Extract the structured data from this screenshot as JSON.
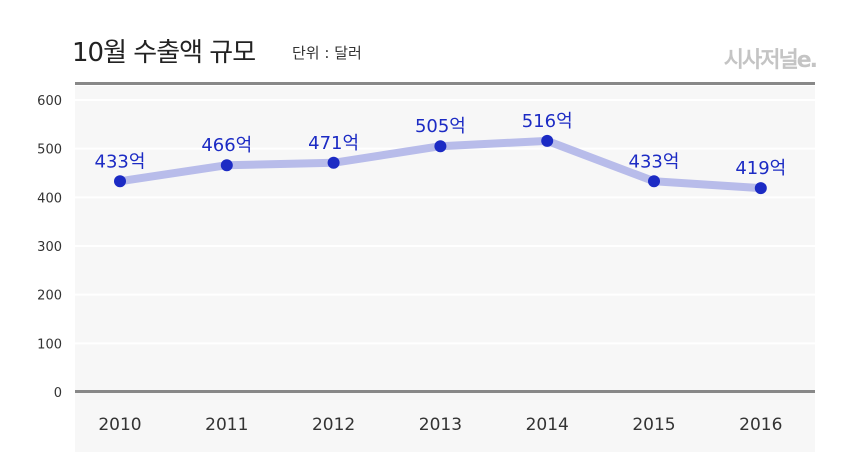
{
  "header": {
    "title": "10월 수출액 규모",
    "unit": "단위 : 달러",
    "logo": "시사저널e."
  },
  "chart_data": {
    "type": "line",
    "title": "10월 수출액 규모",
    "subtitle": "단위 : 달러",
    "categories": [
      "2010",
      "2011",
      "2012",
      "2013",
      "2014",
      "2015",
      "2016"
    ],
    "values": [
      433,
      466,
      471,
      505,
      516,
      433,
      419
    ],
    "data_labels": [
      "433억",
      "466억",
      "471억",
      "505억",
      "516억",
      "433억",
      "419억"
    ],
    "yticks": [
      "0",
      "100",
      "200",
      "300",
      "400",
      "500",
      "600"
    ],
    "ylim": [
      0,
      600
    ],
    "xlabel": "",
    "ylabel": "",
    "grid": true,
    "colors": {
      "line": "#b8bcea",
      "marker": "#1c2bc4",
      "label": "#1c2bc4",
      "plot_bg": "#f7f7f7",
      "axis": "#888888"
    }
  }
}
